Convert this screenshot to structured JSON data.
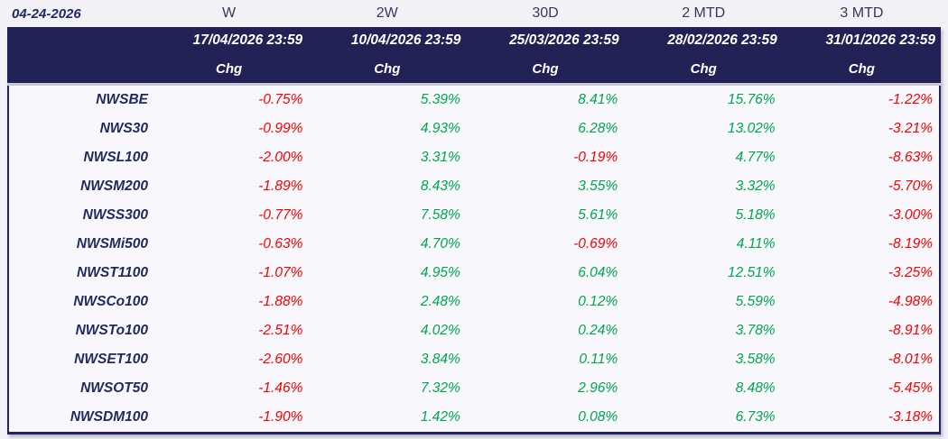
{
  "report": {
    "as_of_date": "04-24-2026"
  },
  "table": {
    "columns": [
      {
        "period": "W",
        "date": "17/04/2026 23:59",
        "measure": "Chg"
      },
      {
        "period": "2W",
        "date": "10/04/2026 23:59",
        "measure": "Chg"
      },
      {
        "period": "30D",
        "date": "25/03/2026 23:59",
        "measure": "Chg"
      },
      {
        "period": "2 MTD",
        "date": "28/02/2026 23:59",
        "measure": "Chg"
      },
      {
        "period": "3 MTD",
        "date": "31/01/2026 23:59",
        "measure": "Chg"
      }
    ],
    "rows": [
      {
        "label": "NWSBE",
        "values": [
          "-0.75%",
          "5.39%",
          "8.41%",
          "15.76%",
          "-1.22%"
        ]
      },
      {
        "label": "NWS30",
        "values": [
          "-0.99%",
          "4.93%",
          "6.28%",
          "13.02%",
          "-3.21%"
        ]
      },
      {
        "label": "NWSL100",
        "values": [
          "-2.00%",
          "3.31%",
          "-0.19%",
          "4.77%",
          "-8.63%"
        ]
      },
      {
        "label": "NWSM200",
        "values": [
          "-1.89%",
          "8.43%",
          "3.55%",
          "3.32%",
          "-5.70%"
        ]
      },
      {
        "label": "NWSS300",
        "values": [
          "-0.77%",
          "7.58%",
          "5.61%",
          "5.18%",
          "-3.00%"
        ]
      },
      {
        "label": "NWSMi500",
        "values": [
          "-0.63%",
          "4.70%",
          "-0.69%",
          "4.11%",
          "-8.19%"
        ]
      },
      {
        "label": "NWST1100",
        "values": [
          "-1.07%",
          "4.95%",
          "6.04%",
          "12.51%",
          "-3.25%"
        ]
      },
      {
        "label": "NWSCo100",
        "values": [
          "-1.88%",
          "2.48%",
          "0.12%",
          "5.59%",
          "-4.98%"
        ]
      },
      {
        "label": "NWSTo100",
        "values": [
          "-2.51%",
          "4.02%",
          "0.24%",
          "3.78%",
          "-8.91%"
        ]
      },
      {
        "label": "NWSET100",
        "values": [
          "-2.60%",
          "3.84%",
          "0.11%",
          "3.58%",
          "-8.01%"
        ]
      },
      {
        "label": "NWSOT50",
        "values": [
          "-1.46%",
          "7.32%",
          "2.96%",
          "8.48%",
          "-5.45%"
        ]
      },
      {
        "label": "NWSDM100",
        "values": [
          "-1.90%",
          "1.42%",
          "0.08%",
          "6.73%",
          "-3.18%"
        ]
      }
    ]
  },
  "colors": {
    "positive": "#00a74e",
    "negative": "#fe0000",
    "header_band_bg": "#212155",
    "label_text": "#202a5e",
    "page_bg": "#f1f1f6"
  },
  "chart_data": {
    "type": "table",
    "as_of": "04-24-2026",
    "periods": [
      "W",
      "2W",
      "30D",
      "2 MTD",
      "3 MTD"
    ],
    "period_end_dates": [
      "17/04/2026 23:59",
      "10/04/2026 23:59",
      "25/03/2026 23:59",
      "28/02/2026 23:59",
      "31/01/2026 23:59"
    ],
    "metric": "Chg",
    "unit": "%",
    "row_labels": [
      "NWSBE",
      "NWS30",
      "NWSL100",
      "NWSM200",
      "NWSS300",
      "NWSMi500",
      "NWST1100",
      "NWSCo100",
      "NWSTo100",
      "NWSET100",
      "NWSOT50",
      "NWSDM100"
    ],
    "values_pct": [
      [
        -0.75,
        5.39,
        8.41,
        15.76,
        -1.22
      ],
      [
        -0.99,
        4.93,
        6.28,
        13.02,
        -3.21
      ],
      [
        -2.0,
        3.31,
        -0.19,
        4.77,
        -8.63
      ],
      [
        -1.89,
        8.43,
        3.55,
        3.32,
        -5.7
      ],
      [
        -0.77,
        7.58,
        5.61,
        5.18,
        -3.0
      ],
      [
        -0.63,
        4.7,
        -0.69,
        4.11,
        -8.19
      ],
      [
        -1.07,
        4.95,
        6.04,
        12.51,
        -3.25
      ],
      [
        -1.88,
        2.48,
        0.12,
        5.59,
        -4.98
      ],
      [
        -2.51,
        4.02,
        0.24,
        3.78,
        -8.91
      ],
      [
        -2.6,
        3.84,
        0.11,
        3.58,
        -8.01
      ],
      [
        -1.46,
        7.32,
        2.96,
        8.48,
        -5.45
      ],
      [
        -1.9,
        1.42,
        0.08,
        6.73,
        -3.18
      ]
    ],
    "legend_position": "none",
    "grid": false
  }
}
